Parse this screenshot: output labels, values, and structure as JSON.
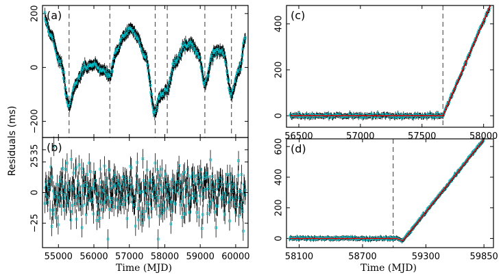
{
  "figure": {
    "ylabel_shared": "Residuals (ms)",
    "xlabel_left": "Time (MJD)",
    "xlabel_right": "Time (MJD)"
  },
  "colors": {
    "points": "#00c8d2",
    "errorbars": "#000000",
    "fit": "#e00000",
    "events": "#555555"
  },
  "chart_data": [
    {
      "id": "a",
      "type": "scatter",
      "label": "(a)",
      "xlim": [
        54550,
        60350
      ],
      "ylim": [
        -260,
        230
      ],
      "xticks": [
        55000,
        56000,
        57000,
        58000,
        59000,
        60000
      ],
      "xtick_labels_shown": false,
      "yticks": [
        -200,
        0,
        200
      ],
      "ytick_labels": [
        "−200",
        "0",
        "200"
      ],
      "event_lines_mjd": [
        55300,
        56450,
        57730,
        58070,
        59130,
        59880
      ],
      "profile": [
        [
          54620,
          180
        ],
        [
          54800,
          120
        ],
        [
          55050,
          20
        ],
        [
          55300,
          -140
        ],
        [
          55500,
          -60
        ],
        [
          55750,
          0
        ],
        [
          56000,
          10
        ],
        [
          56250,
          -10
        ],
        [
          56450,
          -30
        ],
        [
          56650,
          60
        ],
        [
          56850,
          120
        ],
        [
          57050,
          145
        ],
        [
          57250,
          110
        ],
        [
          57450,
          40
        ],
        [
          57730,
          -170
        ],
        [
          57850,
          -110
        ],
        [
          58070,
          -80
        ],
        [
          58300,
          20
        ],
        [
          58550,
          80
        ],
        [
          58750,
          90
        ],
        [
          58950,
          50
        ],
        [
          59130,
          -60
        ],
        [
          59400,
          60
        ],
        [
          59650,
          60
        ],
        [
          59880,
          -100
        ],
        [
          60100,
          -10
        ],
        [
          60280,
          110
        ]
      ],
      "errorbar_ms": 18
    },
    {
      "id": "b",
      "type": "scatter",
      "label": "(b)",
      "xlim": [
        54550,
        60350
      ],
      "ylim": [
        -45,
        45
      ],
      "xticks": [
        55000,
        56000,
        57000,
        58000,
        59000,
        60000
      ],
      "xtick_labels": [
        "55000",
        "56000",
        "57000",
        "58000",
        "59000",
        "60000"
      ],
      "yticks": [
        -25,
        0,
        25
      ],
      "ytick_labels": [
        "−25",
        "0",
        "25"
      ],
      "extra_yticks": [
        35
      ],
      "extra_ytick_labels": [
        "35"
      ],
      "noise_sigma_ms": 12,
      "errorbar_ms": 8
    },
    {
      "id": "c",
      "type": "scatter",
      "label": "(c)",
      "xlim": [
        56400,
        58080
      ],
      "ylim": [
        -50,
        480
      ],
      "xticks": [
        56500,
        57000,
        57500,
        58000
      ],
      "xtick_labels": [
        "56500",
        "57000",
        "57500",
        "58000"
      ],
      "yticks": [
        0,
        200,
        400
      ],
      "ytick_labels": [
        "0",
        "200",
        "400"
      ],
      "event_lines_mjd": [
        57670
      ],
      "fit": {
        "before": 0,
        "break_mjd": 57670,
        "slope_ms_per_day": 1.25
      },
      "errorbar_ms": 12
    },
    {
      "id": "d",
      "type": "scatter",
      "label": "(d)",
      "xlim": [
        57980,
        59940
      ],
      "ylim": [
        -60,
        650
      ],
      "xticks": [
        58100,
        58700,
        59300,
        59850
      ],
      "xtick_labels": [
        "58100",
        "58700",
        "59300",
        "59850"
      ],
      "yticks": [
        0,
        200,
        400,
        600
      ],
      "ytick_labels": [
        "0",
        "200",
        "400",
        "600"
      ],
      "event_lines_mjd": [
        58990
      ],
      "fit": {
        "before": 0,
        "break_mjd": 59080,
        "dip_ms": -15,
        "slope_ms_per_day": 0.86
      },
      "errorbar_ms": 14
    }
  ]
}
